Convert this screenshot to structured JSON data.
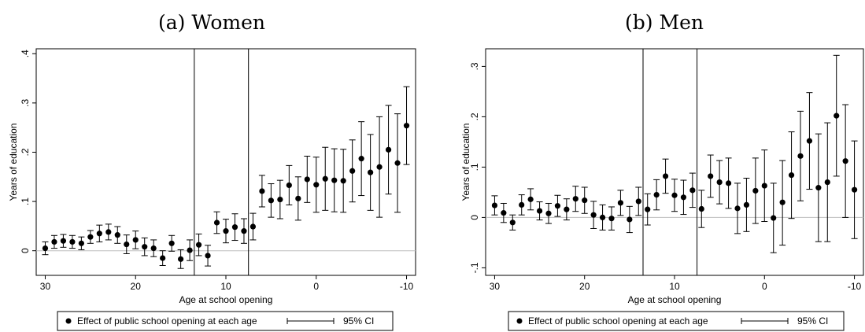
{
  "chart_data": [
    {
      "type": "scatter",
      "title": "(a) Women",
      "xlabel": "Age at school opening",
      "ylabel": "Years of education",
      "xlim": [
        31,
        -11
      ],
      "ylim": [
        -0.05,
        0.41
      ],
      "xticks": [
        30,
        20,
        10,
        0,
        -10
      ],
      "xtick_labels": [
        "30",
        "20",
        "10",
        "0",
        "-10"
      ],
      "yticks": [
        0,
        0.1,
        0.2,
        0.3,
        0.4
      ],
      "ytick_labels": [
        "0",
        ".1",
        ".2",
        ".3",
        ".4"
      ],
      "vlines": [
        13.5,
        7.5
      ],
      "hline": 0,
      "legend": {
        "position": "bottom",
        "point_label": "Effect of public school opening at each age",
        "ci_label": "95% CI"
      },
      "series": [
        {
          "x": [
            30,
            29,
            28,
            27,
            26,
            25,
            24,
            23,
            22,
            21,
            20,
            19,
            18,
            17,
            16,
            15,
            14,
            13,
            12,
            11,
            10,
            9,
            8,
            7,
            6,
            5,
            4,
            3,
            2,
            1,
            0,
            -1,
            -2,
            -3,
            -4,
            -5,
            -6,
            -7,
            -8,
            -9,
            -10
          ],
          "y": [
            0.005,
            0.018,
            0.02,
            0.018,
            0.015,
            0.028,
            0.035,
            0.038,
            0.032,
            0.013,
            0.022,
            0.008,
            0.005,
            -0.015,
            0.015,
            -0.017,
            0.001,
            0.012,
            -0.01,
            0.057,
            0.04,
            0.048,
            0.04,
            0.049,
            0.121,
            0.102,
            0.104,
            0.133,
            0.106,
            0.145,
            0.134,
            0.146,
            0.143,
            0.142,
            0.162,
            0.187,
            0.159,
            0.17,
            0.205,
            0.178,
            0.254
          ],
          "lower": [
            -0.008,
            0.005,
            0.007,
            0.005,
            0.002,
            0.015,
            0.018,
            0.022,
            0.015,
            -0.006,
            0.004,
            -0.01,
            -0.012,
            -0.03,
            -0.001,
            -0.036,
            -0.02,
            -0.01,
            -0.031,
            0.035,
            0.016,
            0.021,
            0.015,
            0.022,
            0.089,
            0.068,
            0.065,
            0.093,
            0.062,
            0.098,
            0.078,
            0.082,
            0.079,
            0.078,
            0.099,
            0.112,
            0.082,
            0.068,
            0.115,
            0.078,
            0.175
          ],
          "upper": [
            0.018,
            0.031,
            0.033,
            0.031,
            0.028,
            0.041,
            0.052,
            0.054,
            0.049,
            0.032,
            0.04,
            0.026,
            0.022,
            0.0,
            0.031,
            0.002,
            0.022,
            0.034,
            0.011,
            0.079,
            0.064,
            0.075,
            0.065,
            0.076,
            0.153,
            0.136,
            0.143,
            0.173,
            0.15,
            0.192,
            0.19,
            0.21,
            0.207,
            0.206,
            0.225,
            0.262,
            0.236,
            0.272,
            0.295,
            0.278,
            0.333
          ]
        }
      ]
    },
    {
      "type": "scatter",
      "title": "(b) Men",
      "xlabel": "Age at school opening",
      "ylabel": "Years of education",
      "xlim": [
        31,
        -11
      ],
      "ylim": [
        -0.115,
        0.335
      ],
      "xticks": [
        30,
        20,
        10,
        0,
        -10
      ],
      "xtick_labels": [
        "30",
        "20",
        "10",
        "0",
        "-10"
      ],
      "yticks": [
        -0.1,
        0,
        0.1,
        0.2,
        0.3
      ],
      "ytick_labels": [
        "-.1",
        "0",
        ".1",
        ".2",
        ".3"
      ],
      "vlines": [
        13.5,
        7.5
      ],
      "hline": 0,
      "legend": {
        "position": "bottom",
        "point_label": "Effect of public school opening at each age",
        "ci_label": "95% CI"
      },
      "series": [
        {
          "x": [
            30,
            29,
            28,
            27,
            26,
            25,
            24,
            23,
            22,
            21,
            20,
            19,
            18,
            17,
            16,
            15,
            14,
            13,
            12,
            11,
            10,
            9,
            8,
            7,
            6,
            5,
            4,
            3,
            2,
            1,
            0,
            -1,
            -2,
            -3,
            -4,
            -5,
            -6,
            -7,
            -8,
            -9,
            -10
          ],
          "y": [
            0.024,
            0.009,
            -0.01,
            0.025,
            0.036,
            0.013,
            0.008,
            0.023,
            0.016,
            0.037,
            0.034,
            0.005,
            0.0,
            -0.002,
            0.029,
            -0.004,
            0.032,
            0.016,
            0.045,
            0.082,
            0.044,
            0.04,
            0.054,
            0.017,
            0.082,
            0.07,
            0.068,
            0.018,
            0.025,
            0.053,
            0.063,
            -0.001,
            0.03,
            0.084,
            0.122,
            0.152,
            0.059,
            0.07,
            0.202,
            0.112,
            0.055
          ],
          "lower": [
            0.005,
            -0.01,
            -0.025,
            0.005,
            0.015,
            -0.005,
            -0.012,
            0.002,
            -0.005,
            0.012,
            0.008,
            -0.022,
            -0.025,
            -0.025,
            0.004,
            -0.03,
            0.004,
            -0.015,
            0.015,
            0.048,
            0.012,
            0.006,
            0.02,
            -0.02,
            0.04,
            0.027,
            0.018,
            -0.032,
            -0.028,
            -0.012,
            -0.008,
            -0.07,
            -0.055,
            -0.002,
            0.033,
            0.056,
            -0.048,
            -0.048,
            0.082,
            0.0,
            -0.042
          ],
          "upper": [
            0.043,
            0.028,
            0.005,
            0.045,
            0.057,
            0.031,
            0.028,
            0.044,
            0.037,
            0.062,
            0.06,
            0.032,
            0.025,
            0.021,
            0.054,
            0.022,
            0.06,
            0.047,
            0.075,
            0.116,
            0.076,
            0.074,
            0.088,
            0.054,
            0.124,
            0.113,
            0.118,
            0.068,
            0.078,
            0.118,
            0.134,
            0.068,
            0.113,
            0.17,
            0.211,
            0.248,
            0.166,
            0.188,
            0.322,
            0.224,
            0.152
          ]
        }
      ]
    }
  ]
}
